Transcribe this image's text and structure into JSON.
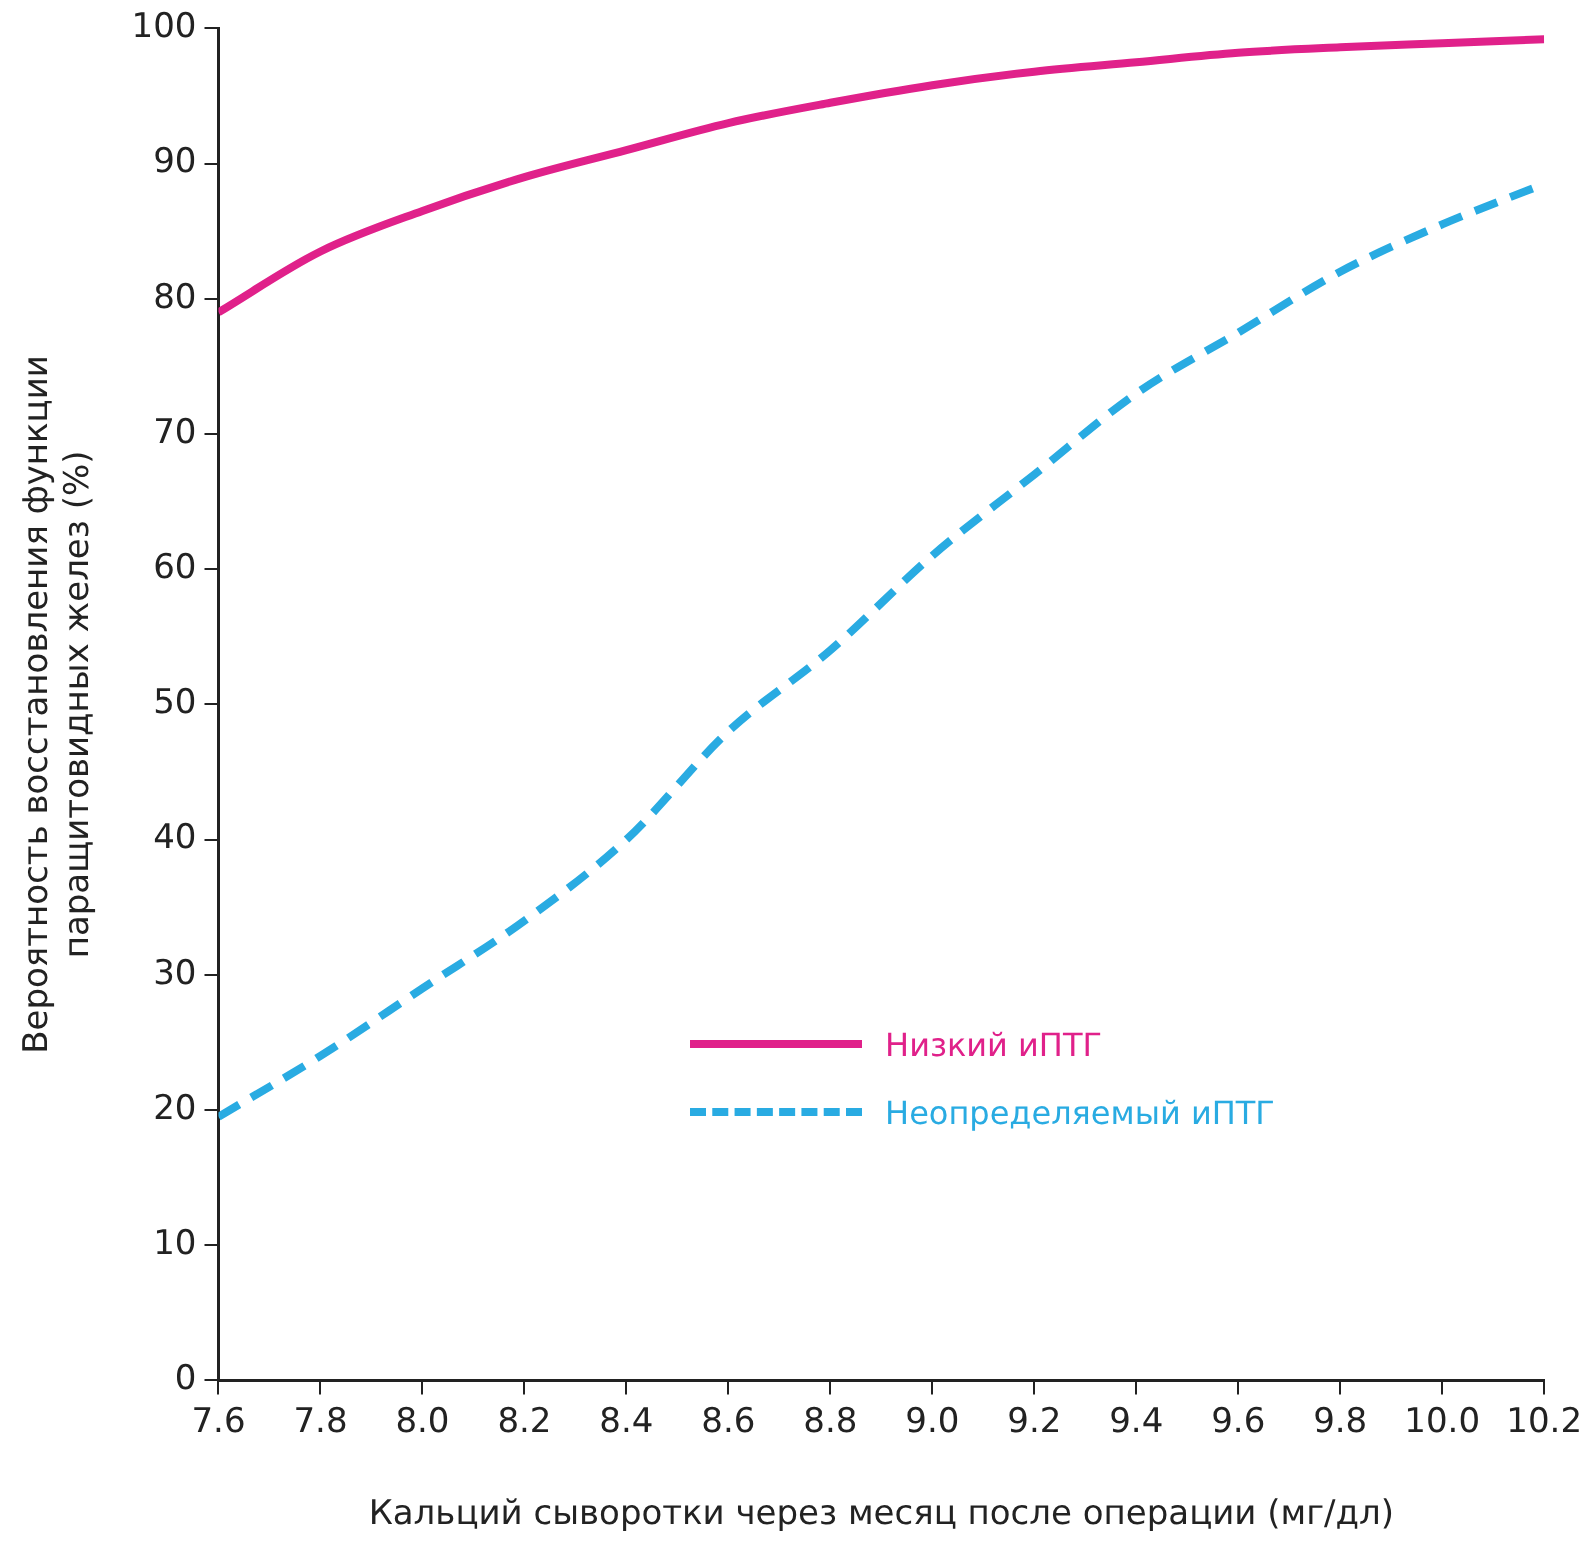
{
  "chart_data": {
    "type": "line",
    "xlabel": "Кальций сыворотки через месяц после операции (мг/дл)",
    "ylabel": "Вероятность восстановления функции\nпаращитовидных желез (%)",
    "x": [
      7.6,
      7.8,
      8.0,
      8.2,
      8.4,
      8.6,
      8.8,
      9.0,
      9.2,
      9.4,
      9.6,
      9.8,
      10.0,
      10.2
    ],
    "series": [
      {
        "name": "Низкий иПТГ",
        "color": "#e0218a",
        "line_style": "solid",
        "values": [
          79,
          83.5,
          86.5,
          89,
          91,
          93,
          94.5,
          95.8,
          96.8,
          97.5,
          98.2,
          98.6,
          98.9,
          99.2
        ]
      },
      {
        "name": "Неопределяемый иПТГ",
        "color": "#29abe2",
        "line_style": "dashed",
        "values": [
          19.5,
          24,
          29,
          34,
          40,
          48,
          54,
          61,
          67,
          73,
          77.5,
          82,
          85.5,
          88.5
        ]
      }
    ],
    "xlim": [
      7.6,
      10.2
    ],
    "xticks": [
      {
        "value": 7.6,
        "label": "7.6"
      },
      {
        "value": 7.8,
        "label": "7.8"
      },
      {
        "value": 8.0,
        "label": "8.0"
      },
      {
        "value": 8.2,
        "label": "8.2"
      },
      {
        "value": 8.4,
        "label": "8.4"
      },
      {
        "value": 8.6,
        "label": "8.6"
      },
      {
        "value": 8.8,
        "label": "8.8"
      },
      {
        "value": 9.0,
        "label": "9.0"
      },
      {
        "value": 9.2,
        "label": "9.2"
      },
      {
        "value": 9.4,
        "label": "9.4"
      },
      {
        "value": 9.6,
        "label": "9.6"
      },
      {
        "value": 9.8,
        "label": "9.8"
      },
      {
        "value": 10.0,
        "label": "10.0"
      },
      {
        "value": 10.2,
        "label": "10.2"
      }
    ],
    "ylim": [
      0,
      100
    ],
    "yticks": [
      0,
      10,
      20,
      30,
      40,
      50,
      60,
      70,
      80,
      90,
      100
    ],
    "grid": false,
    "legend": "bottom",
    "marker": "none"
  }
}
